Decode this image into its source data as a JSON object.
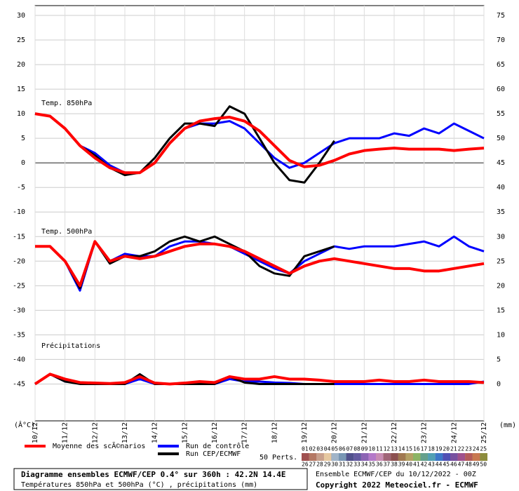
{
  "chart_data": {
    "type": "line",
    "annotations": [
      "Temp. 850hPa",
      "Temp. 500hPa",
      "Précipitations"
    ],
    "ylabel": "(Â°C)",
    "y2label": "(mm)",
    "x": [
      0,
      12,
      24,
      36,
      48,
      60,
      72,
      84,
      96,
      108,
      120,
      132,
      144,
      156,
      168,
      180,
      192,
      204,
      216,
      228,
      240,
      252,
      264,
      276,
      288,
      300,
      312,
      324,
      336,
      348,
      360
    ],
    "xlim": [
      0,
      360
    ],
    "xticks": [
      {
        "value": 0,
        "label": "10/12"
      },
      {
        "value": 24,
        "label": "11/12"
      },
      {
        "value": 48,
        "label": "12/12"
      },
      {
        "value": 72,
        "label": "13/12"
      },
      {
        "value": 96,
        "label": "14/12"
      },
      {
        "value": 120,
        "label": "15/12"
      },
      {
        "value": 144,
        "label": "16/12"
      },
      {
        "value": 168,
        "label": "17/12"
      },
      {
        "value": 192,
        "label": "18/12"
      },
      {
        "value": 216,
        "label": "19/12"
      },
      {
        "value": 240,
        "label": "20/12"
      },
      {
        "value": 264,
        "label": "21/12"
      },
      {
        "value": 288,
        "label": "22/12"
      },
      {
        "value": 312,
        "label": "23/12"
      },
      {
        "value": 336,
        "label": "24/12"
      },
      {
        "value": 360,
        "label": "25/12"
      }
    ],
    "ylim": [
      -52.5,
      32
    ],
    "yticks": [
      -45,
      -40,
      -35,
      -30,
      -25,
      -20,
      -15,
      -10,
      -5,
      0,
      5,
      10,
      15,
      20,
      25,
      30
    ],
    "y2lim": [
      -7.5,
      77
    ],
    "y2ticks": [
      0,
      5,
      10,
      15,
      20,
      25,
      30,
      35,
      40,
      45,
      50,
      55,
      60,
      65,
      70,
      75
    ],
    "grid": true,
    "series": [
      {
        "name": "Run de contrôle",
        "color": "#0000ff",
        "t850": [
          10,
          9.5,
          7,
          3.5,
          2,
          -0.5,
          -2,
          -2,
          0,
          4,
          7,
          8,
          8,
          8.5,
          7,
          4,
          1,
          -1,
          0,
          2,
          4,
          5,
          5,
          5,
          6,
          5.5,
          7,
          6,
          8,
          6.5,
          5
        ],
        "t500": [
          -17,
          -17,
          -20,
          -26,
          -16,
          -20,
          -18.5,
          -19,
          -19,
          -17,
          -16,
          -16,
          -16.5,
          -17,
          -18.5,
          -20,
          -21.5,
          -22.5,
          -20,
          -18.5,
          -17,
          -17.5,
          -17,
          -17,
          -17,
          -16.5,
          -16,
          -17,
          -15,
          -17,
          -18
        ],
        "precip": [
          0,
          2,
          0.5,
          0.2,
          0,
          0,
          0,
          1,
          0,
          0,
          0,
          0,
          0,
          1,
          0.5,
          0.5,
          0.3,
          0.2,
          0,
          0,
          0,
          0,
          0,
          0,
          0,
          0,
          0,
          0,
          0,
          0,
          0.5
        ]
      },
      {
        "name": "Run CEP/ECMWF",
        "color": "#000000",
        "t850": [
          10,
          9.5,
          7,
          3.5,
          1.5,
          -1,
          -2.5,
          -2,
          1,
          5,
          8,
          8,
          7.5,
          11.5,
          10,
          5,
          0,
          -3.5,
          -4,
          0,
          4.5,
          null,
          null,
          null,
          null,
          null,
          null,
          null,
          null,
          null,
          null
        ],
        "t500": [
          -17,
          -17,
          -20,
          -25.5,
          -16,
          -20.5,
          -19,
          -19,
          -18,
          -16,
          -15,
          -16,
          -15,
          -16.5,
          -18,
          -21,
          -22.5,
          -23,
          -19,
          -18,
          -17,
          null,
          null,
          null,
          null,
          null,
          null,
          null,
          null,
          null,
          null
        ],
        "precip": [
          0,
          2,
          0.5,
          0,
          0,
          0,
          0,
          2,
          0,
          0,
          0,
          0,
          0,
          1.5,
          0.3,
          0,
          0,
          0,
          0,
          0,
          0,
          null,
          null,
          null,
          null,
          null,
          null,
          null,
          null,
          null,
          null
        ]
      },
      {
        "name": "Moyenne des scÃ©narios",
        "color": "#ff0000",
        "t850": [
          10,
          9.5,
          7,
          3.5,
          1,
          -1,
          -2,
          -2,
          0,
          4,
          7,
          8.5,
          9,
          9.3,
          8.5,
          6.5,
          3.5,
          0.5,
          -0.8,
          -0.5,
          0.5,
          1.8,
          2.5,
          2.8,
          3,
          2.8,
          2.8,
          2.8,
          2.5,
          2.8,
          3
        ],
        "t500": [
          -17,
          -17,
          -20,
          -25,
          -16,
          -20,
          -19,
          -19.5,
          -19,
          -18,
          -17,
          -16.5,
          -16.5,
          -17,
          -18,
          -19.5,
          -21,
          -22.5,
          -21,
          -20,
          -19.5,
          -20,
          -20.5,
          -21,
          -21.5,
          -21.5,
          -22,
          -22,
          -21.5,
          -21,
          -20.5
        ],
        "precip": [
          0,
          2,
          1,
          0.3,
          0.2,
          0.1,
          0.3,
          1.5,
          0.2,
          0,
          0.2,
          0.5,
          0.3,
          1.5,
          1,
          1,
          1.5,
          1,
          1,
          0.8,
          0.5,
          0.5,
          0.5,
          0.8,
          0.5,
          0.5,
          0.8,
          0.5,
          0.5,
          0.5,
          0.3
        ]
      }
    ],
    "perturbations_label": "50 Perts.",
    "perturbations": [
      "01",
      "02",
      "03",
      "04",
      "05",
      "06",
      "07",
      "08",
      "09",
      "10",
      "11",
      "12",
      "13",
      "14",
      "15",
      "16",
      "17",
      "18",
      "19",
      "20",
      "21",
      "22",
      "23",
      "24",
      "25",
      "26",
      "27",
      "28",
      "29",
      "30",
      "31",
      "32",
      "33",
      "34",
      "35",
      "36",
      "37",
      "38",
      "39",
      "40",
      "41",
      "42",
      "43",
      "44",
      "45",
      "46",
      "47",
      "48",
      "49",
      "50"
    ],
    "perturbation_colors": [
      "#c8a0c8",
      "#b48cb4",
      "#a05a78",
      "#8c3c3c",
      "#b47850",
      "#c8a078",
      "#a0c8a0",
      "#78b4b4",
      "#6496c8",
      "#a0a0e6",
      "#c8c8a0",
      "#c8b478",
      "#a0c878",
      "#64b464",
      "#3ca03c",
      "#78c8c8",
      "#5a8cc8",
      "#8c78c8",
      "#b464c8",
      "#c864a0",
      "#c86464",
      "#c89664",
      "#b4b43c",
      "#78a03c",
      "#3c8c78",
      "#a05050",
      "#b47864",
      "#c8a08c",
      "#e6c8a0",
      "#a0b4c8",
      "#7896b4",
      "#50508c",
      "#645aa0",
      "#8c64b4",
      "#b478c8",
      "#c88cb4",
      "#a06478",
      "#8c5050",
      "#a07850",
      "#b4a064",
      "#8cb464",
      "#64a08c",
      "#50a0b4",
      "#3c78c8",
      "#5050b4",
      "#7850a0",
      "#a0508c",
      "#b45a5a",
      "#c87850",
      "#8c8c3c"
    ],
    "footer": {
      "title": "Diagramme ensembles ECMWF/CEP 0.4° sur 360h : 42.2N 14.4E",
      "subtitle": "Températures 850hPa et 500hPa (°C) , précipitations (mm)",
      "run": "Ensemble ECMWF/CEP du 10/12/2022 - 00Z",
      "copyright": "Copyright 2022 Meteociel.fr - ECMWF"
    }
  }
}
